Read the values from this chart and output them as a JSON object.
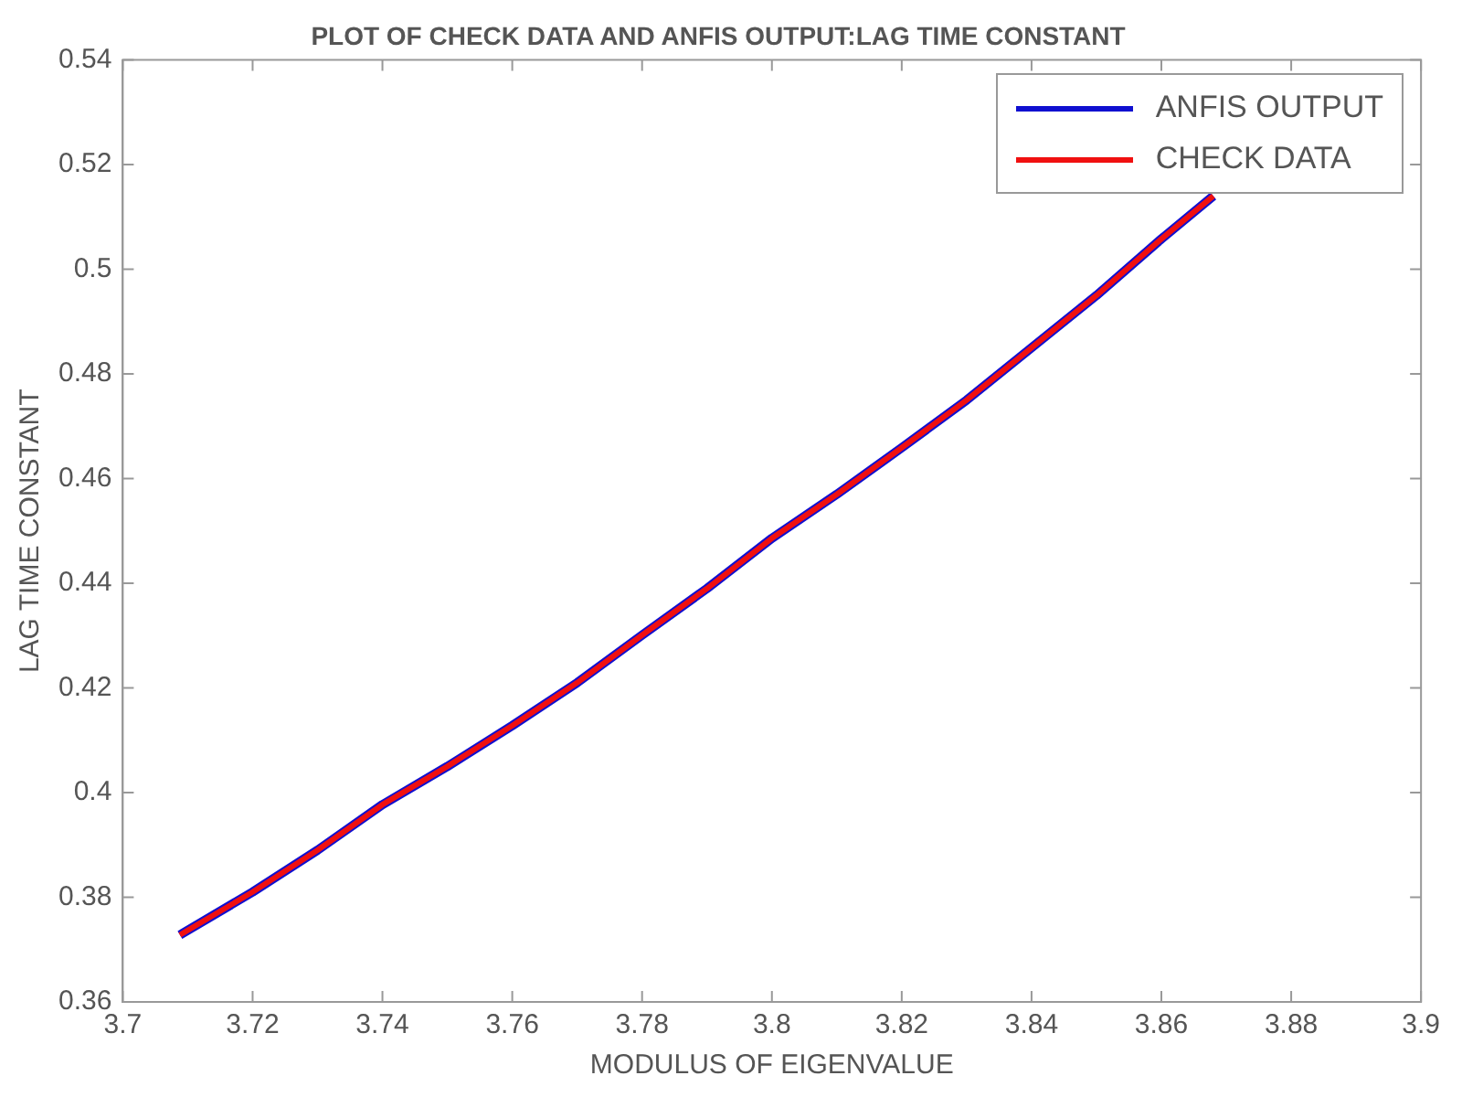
{
  "chart_data": {
    "type": "line",
    "title": "PLOT OF CHECK DATA AND ANFIS OUTPUT:LAG TIME CONSTANT",
    "xlabel": "MODULUS OF EIGENVALUE",
    "ylabel": "LAG TIME CONSTANT",
    "x": [
      3.7088,
      3.72,
      3.73,
      3.74,
      3.75,
      3.76,
      3.77,
      3.78,
      3.79,
      3.8,
      3.81,
      3.82,
      3.83,
      3.84,
      3.85,
      3.86,
      3.868
    ],
    "series": [
      {
        "name": "ANFIS OUTPUT",
        "color": "#1010d0",
        "values": [
          0.3728,
          0.381,
          0.389,
          0.3977,
          0.405,
          0.4128,
          0.421,
          0.4301,
          0.439,
          0.4486,
          0.457,
          0.4659,
          0.475,
          0.485,
          0.495,
          0.5058,
          0.514
        ]
      },
      {
        "name": "CHECK DATA",
        "color": "#f01010",
        "values": [
          0.3728,
          0.381,
          0.389,
          0.3977,
          0.405,
          0.4128,
          0.421,
          0.4301,
          0.439,
          0.4486,
          0.457,
          0.4659,
          0.475,
          0.485,
          0.495,
          0.5058,
          0.514
        ]
      }
    ],
    "xlim": [
      3.7,
      3.9
    ],
    "xticks": [
      3.7,
      3.72,
      3.74,
      3.76,
      3.78,
      3.8,
      3.82,
      3.84,
      3.86,
      3.88,
      3.9
    ],
    "ylim": [
      0.36,
      0.54
    ],
    "yticks": [
      0.36,
      0.38,
      0.4,
      0.42,
      0.44,
      0.46,
      0.48,
      0.5,
      0.52,
      0.54
    ],
    "grid": false,
    "legend": "top right",
    "marker": "none",
    "line_style": "solid"
  }
}
